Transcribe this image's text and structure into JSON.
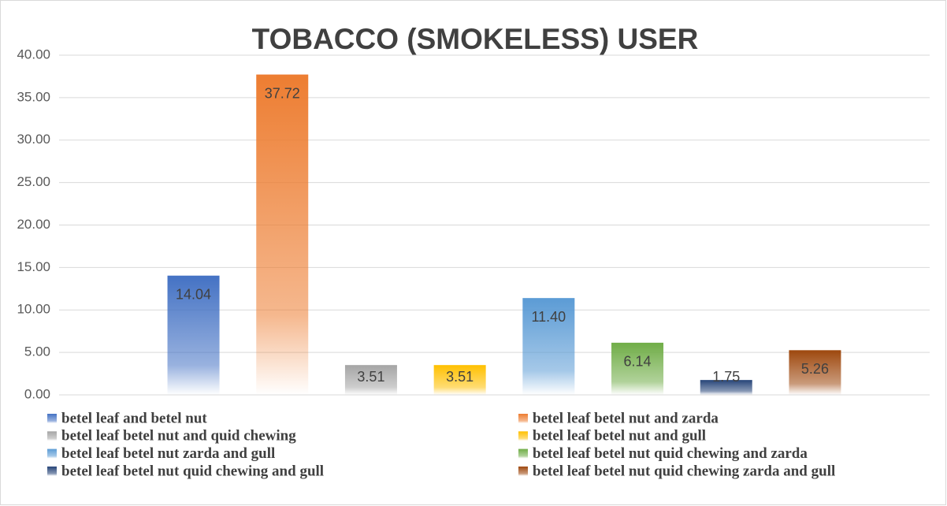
{
  "chart_data": {
    "type": "bar",
    "title": "TOBACCO (SMOKELESS) USER",
    "ylim": [
      0,
      40
    ],
    "yticks": [
      {
        "value": 0,
        "label": "0.00"
      },
      {
        "value": 5,
        "label": "5.00"
      },
      {
        "value": 10,
        "label": "10.00"
      },
      {
        "value": 15,
        "label": "15.00"
      },
      {
        "value": 20,
        "label": "20.00"
      },
      {
        "value": 25,
        "label": "25.00"
      },
      {
        "value": 30,
        "label": "30.00"
      },
      {
        "value": 35,
        "label": "35.00"
      },
      {
        "value": 40,
        "label": "40.00"
      }
    ],
    "grid": true,
    "legend": "bottom",
    "series": [
      {
        "name": "betel leaf and betel nut",
        "color": "#4472c4",
        "values": [
          14.04
        ],
        "value_labels": [
          "14.04"
        ]
      },
      {
        "name": "betel leaf  betel nut and zarda",
        "color": "#ed7d31",
        "values": [
          37.72
        ],
        "value_labels": [
          "37.72"
        ]
      },
      {
        "name": "betel leaf  betel nut and quid chewing",
        "color": "#a5a5a5",
        "values": [
          3.51
        ],
        "value_labels": [
          "3.51"
        ]
      },
      {
        "name": "betel leaf  betel nut and gull",
        "color": "#ffc000",
        "values": [
          3.51
        ],
        "value_labels": [
          "3.51"
        ]
      },
      {
        "name": "betel leaf  betel nut zarda and gull",
        "color": "#5b9bd5",
        "values": [
          11.4
        ],
        "value_labels": [
          "11.40"
        ]
      },
      {
        "name": "betel leaf  betel nut quid chewing and zarda",
        "color": "#70ad47",
        "values": [
          6.14
        ],
        "value_labels": [
          "6.14"
        ]
      },
      {
        "name": "betel leaf  betel nut quid chewing and gull",
        "color": "#264478",
        "values": [
          1.75
        ],
        "value_labels": [
          "1.75"
        ]
      },
      {
        "name": "betel leaf  betel nut quid chewing zarda and gull",
        "color": "#9e480e",
        "values": [
          5.26
        ],
        "value_labels": [
          "5.26"
        ]
      }
    ]
  }
}
